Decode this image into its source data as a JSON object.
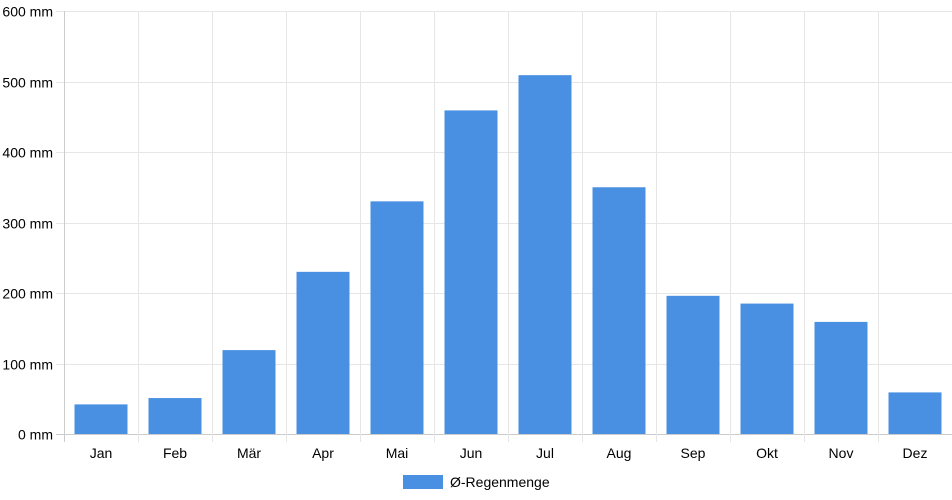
{
  "chart_data": {
    "type": "bar",
    "categories": [
      "Jan",
      "Feb",
      "Mär",
      "Apr",
      "Mai",
      "Jun",
      "Jul",
      "Aug",
      "Sep",
      "Okt",
      "Nov",
      "Dez"
    ],
    "series": [
      {
        "name": "Ø-Regenmenge",
        "color": "#4a90e2",
        "values": [
          42,
          51,
          119,
          230,
          330,
          459,
          509,
          350,
          196,
          185,
          159,
          59
        ]
      }
    ],
    "ylim": [
      0,
      600
    ],
    "yticks": [
      0,
      100,
      200,
      300,
      400,
      500,
      600
    ],
    "y_unit": "mm",
    "grid": true,
    "legend": "bottom"
  }
}
